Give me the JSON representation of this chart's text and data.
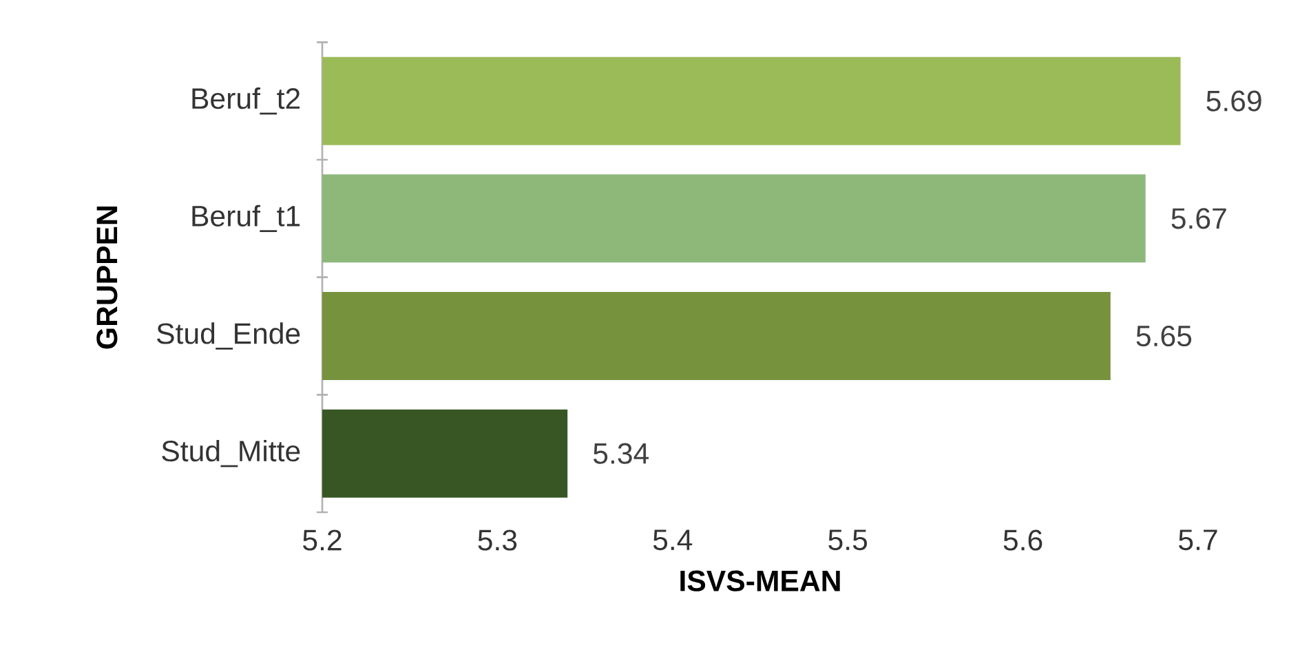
{
  "chart_data": {
    "type": "bar",
    "orientation": "horizontal",
    "categories": [
      "Beruf_t2",
      "Beruf_t1",
      "Stud_Ende",
      "Stud_Mitte"
    ],
    "values": [
      5.69,
      5.67,
      5.65,
      5.34
    ],
    "colors": [
      "#9bbb59",
      "#8db87a",
      "#76923c",
      "#375623"
    ],
    "xlim": [
      5.2,
      5.7
    ],
    "xticks": [
      5.2,
      5.3,
      5.4,
      5.5,
      5.6,
      5.7
    ],
    "xlabel": "ISVS-MEAN",
    "ylabel": "GRUPPEN",
    "data_labels": true
  }
}
